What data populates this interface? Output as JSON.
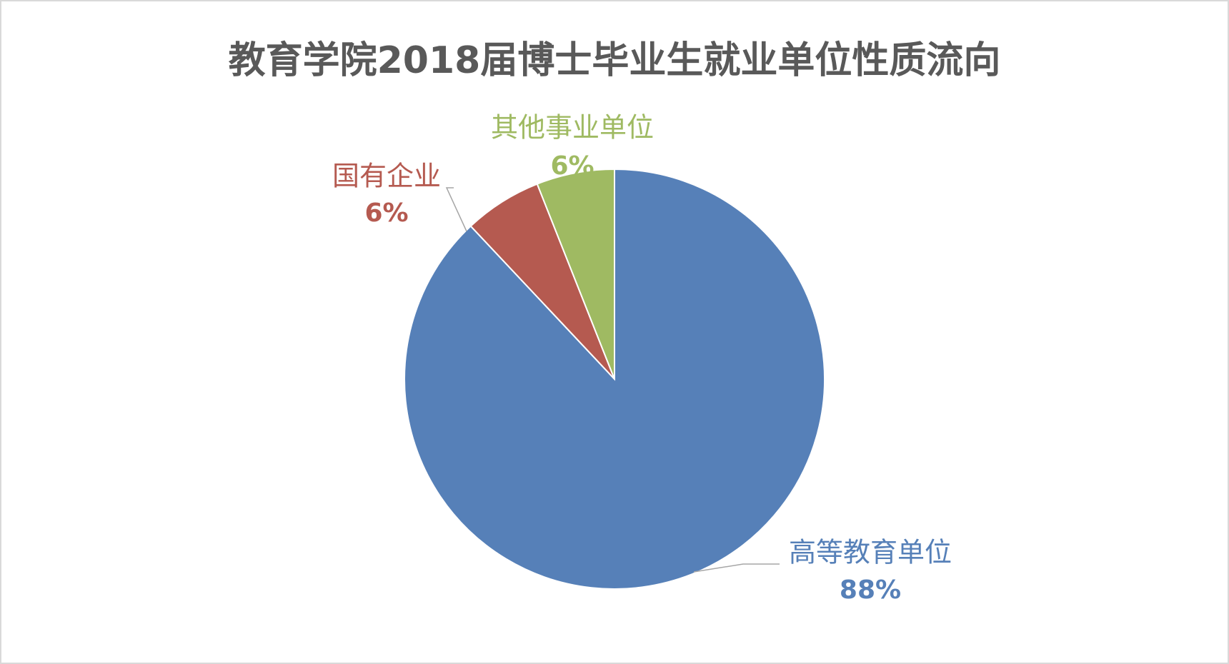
{
  "chart_data": {
    "type": "pie",
    "title": "教育学院2018届博士毕业生就业单位性质流向",
    "categories": [
      "高等教育单位",
      "国有企业",
      "其他事业单位"
    ],
    "values": [
      88,
      6,
      6
    ],
    "value_labels": [
      "88%",
      "6%",
      "6%"
    ],
    "colors": [
      "#5680b8",
      "#b55a50",
      "#9fba62"
    ]
  }
}
